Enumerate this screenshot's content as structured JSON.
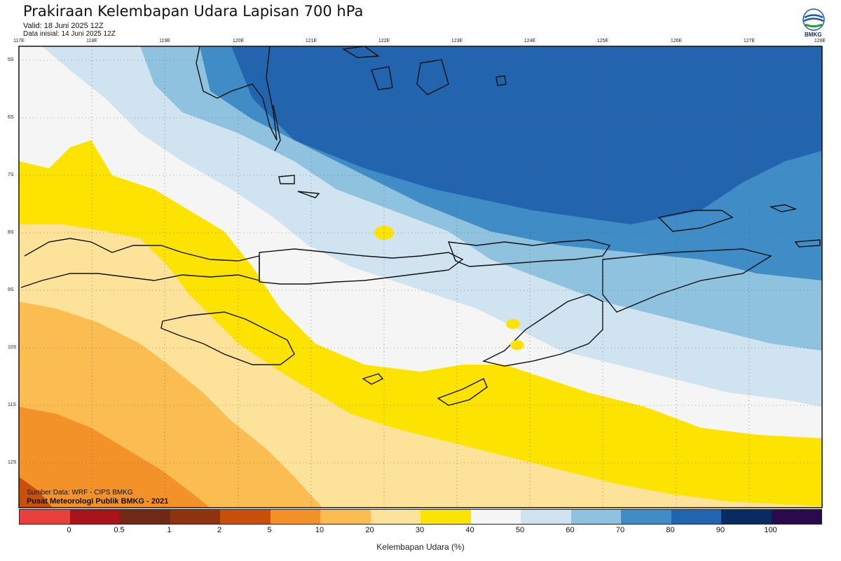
{
  "header": {
    "title": "Prakiraan Kelembapan Udara Lapisan 700 hPa",
    "valid": "Valid: 18 Juni 2025 12Z",
    "initial": "Data inisial: 14 Juni 2025 12Z"
  },
  "logo": {
    "icon": "bmkg-logo-icon",
    "text": "BMKG"
  },
  "axes": {
    "lon_labels": [
      "117E",
      "118E",
      "119E",
      "120E",
      "121E",
      "122E",
      "123E",
      "124E",
      "125E",
      "126E",
      "127E",
      "128E"
    ],
    "lat_labels": [
      "5S",
      "6S",
      "7S",
      "8S",
      "9S",
      "10S",
      "11S",
      "12S"
    ]
  },
  "credits": {
    "source": "Sumber Data: WRF - CIPS BMKG",
    "producer": "Pusat Meteorologi Publik BMKG - 2021"
  },
  "colorbar": {
    "title": "Kelembapan Udara (%)",
    "ticks": [
      "0",
      "0.5",
      "1",
      "2",
      "5",
      "10",
      "20",
      "30",
      "40",
      "50",
      "60",
      "70",
      "80",
      "90",
      "100"
    ],
    "colors": [
      "#e8403a",
      "#a8141b",
      "#6e2a14",
      "#8e3410",
      "#c8500a",
      "#f4922a",
      "#fbbd52",
      "#fde29a",
      "#fce400",
      "#f5f5f5",
      "#cfe3f0",
      "#8fc2de",
      "#3f8cc6",
      "#2264ae",
      "#082c60",
      "#2a0a4a"
    ]
  }
}
